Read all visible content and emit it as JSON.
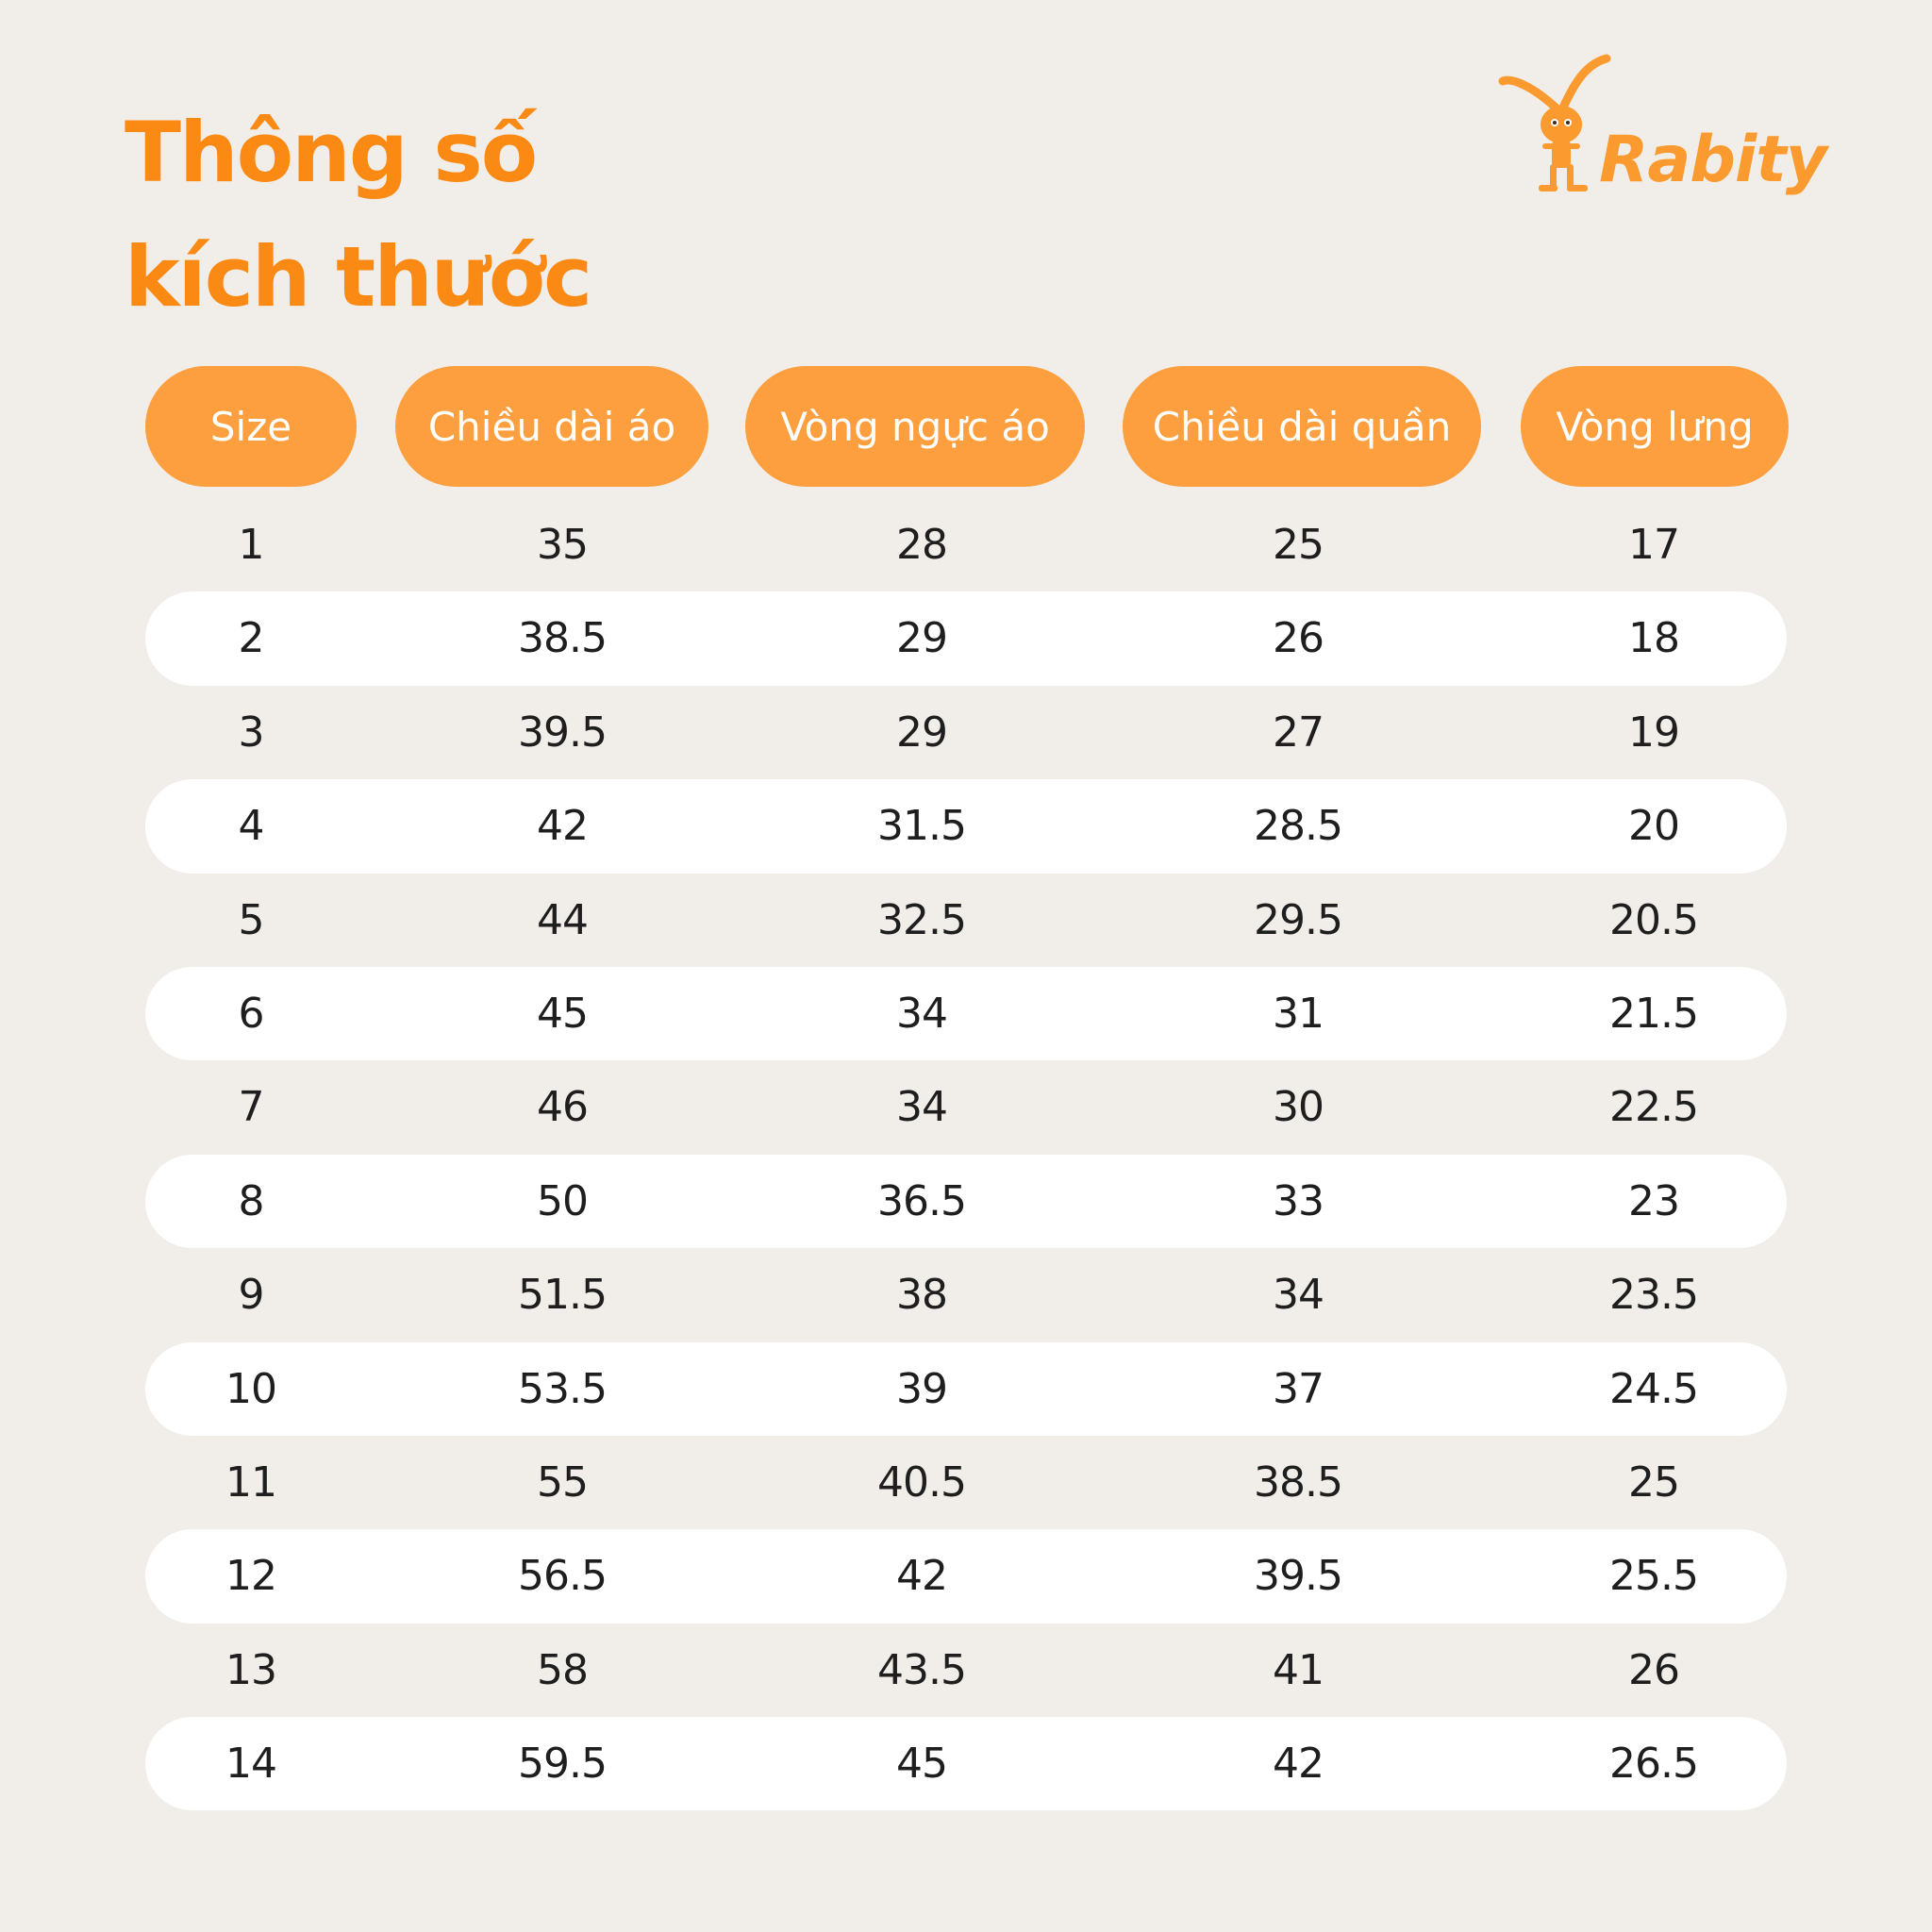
{
  "title": {
    "line1": "Thông số",
    "line2": "kích thước"
  },
  "logo": {
    "text": "Rabity",
    "icon": "rabbit-mascot-icon",
    "color": "#fb9a2e"
  },
  "colors": {
    "accent": "#fb8a14",
    "pill": "#fd9f3e",
    "background": "#f1eeea",
    "row_band": "#ffffff",
    "text": "#1e1e1e"
  },
  "table": {
    "headers": [
      "Size",
      "Chiều dài áo",
      "Vòng ngực áo",
      "Chiều dài quần",
      "Vòng lưng"
    ],
    "rows": [
      [
        "1",
        "35",
        "28",
        "25",
        "17"
      ],
      [
        "2",
        "38.5",
        "29",
        "26",
        "18"
      ],
      [
        "3",
        "39.5",
        "29",
        "27",
        "19"
      ],
      [
        "4",
        "42",
        "31.5",
        "28.5",
        "20"
      ],
      [
        "5",
        "44",
        "32.5",
        "29.5",
        "20.5"
      ],
      [
        "6",
        "45",
        "34",
        "31",
        "21.5"
      ],
      [
        "7",
        "46",
        "34",
        "30",
        "22.5"
      ],
      [
        "8",
        "50",
        "36.5",
        "33",
        "23"
      ],
      [
        "9",
        "51.5",
        "38",
        "34",
        "23.5"
      ],
      [
        "10",
        "53.5",
        "39",
        "37",
        "24.5"
      ],
      [
        "11",
        "55",
        "40.5",
        "38.5",
        "25"
      ],
      [
        "12",
        "56.5",
        "42",
        "39.5",
        "25.5"
      ],
      [
        "13",
        "58",
        "43.5",
        "41",
        "26"
      ],
      [
        "14",
        "59.5",
        "45",
        "42",
        "26.5"
      ]
    ]
  }
}
